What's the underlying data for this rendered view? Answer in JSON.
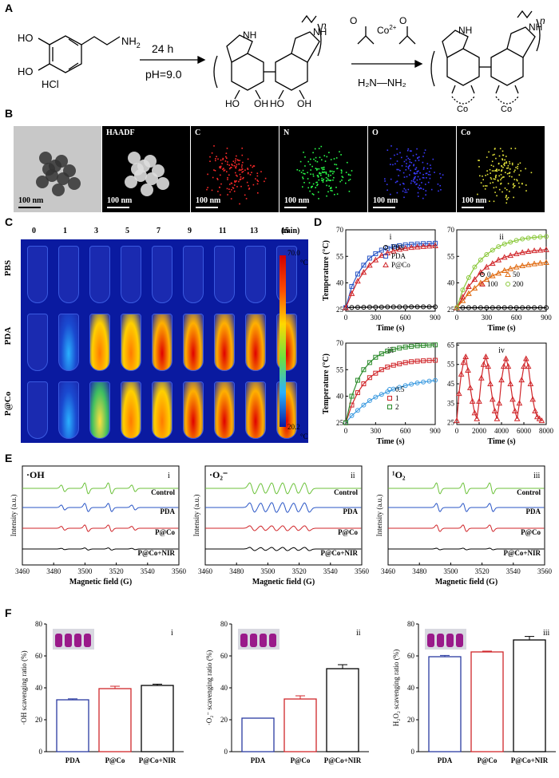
{
  "panels": {
    "A": "A",
    "B": "B",
    "C": "C",
    "D": "D",
    "E": "E",
    "F": "F"
  },
  "scheme": {
    "cond1": "24 h",
    "cond2": "pH=9.0",
    "reactant_hcl": "HCl",
    "reactant_nh2": "NH",
    "reactant_nh2_sub": "2",
    "reagent_n2h4": "H",
    "n_label": "n",
    "nh": "NH",
    "ho": "HO",
    "oh": "OH",
    "co2": "Co",
    "co_charge": "2+",
    "o_minus": "O",
    "co_center": "Co"
  },
  "tem": {
    "tiles": [
      {
        "label": "",
        "scale": "100 nm"
      },
      {
        "label": "HAADF",
        "scale": "100 nm"
      },
      {
        "label": "C",
        "scale": "100 nm",
        "color": "#ff2a2a"
      },
      {
        "label": "N",
        "scale": "100 nm",
        "color": "#2aff4a"
      },
      {
        "label": "O",
        "scale": "100 nm",
        "color": "#3a3aff"
      },
      {
        "label": "Co",
        "scale": "100 nm",
        "color": "#e6e63a"
      }
    ]
  },
  "thermal": {
    "times": [
      "0",
      "1",
      "3",
      "5",
      "7",
      "9",
      "11",
      "13",
      "15"
    ],
    "time_unit": "(min)",
    "rows": [
      "PBS",
      "PDA",
      "P@Co"
    ],
    "scale_max": "70.0",
    "scale_min": "20.2",
    "deg": "°C"
  },
  "chart_data": [
    {
      "panel": "D-i",
      "type": "line",
      "xlabel": "Time (s)",
      "ylabel": "Temperature (°C)",
      "xlim": [
        0,
        900
      ],
      "ylim": [
        24,
        70
      ],
      "xticks": [
        0,
        300,
        600,
        900
      ],
      "yticks": [
        25,
        40,
        55,
        70
      ],
      "legend": [
        "PBS",
        "PDA",
        "P@Co"
      ],
      "x": [
        0,
        60,
        120,
        180,
        240,
        300,
        360,
        420,
        480,
        540,
        600,
        660,
        720,
        780,
        840,
        900
      ],
      "series": [
        {
          "name": "PBS",
          "values": [
            26,
            26.1,
            26.2,
            26.2,
            26.3,
            26.3,
            26.3,
            26.4,
            26.4,
            26.4,
            26.4,
            26.5,
            26.5,
            26.5,
            26.5,
            26.5
          ]
        },
        {
          "name": "PDA",
          "values": [
            26,
            38,
            45,
            50,
            54,
            56.5,
            58.5,
            59.5,
            60.5,
            61,
            61.5,
            61.8,
            62,
            62.2,
            62.3,
            62.4
          ]
        },
        {
          "name": "P@Co",
          "values": [
            26,
            34,
            41,
            46,
            50,
            53,
            55.5,
            57,
            58,
            59,
            59.5,
            60,
            60.3,
            60.6,
            60.8,
            61
          ]
        }
      ]
    },
    {
      "panel": "D-ii",
      "type": "line",
      "xlabel": "Time (s)",
      "ylabel": "",
      "xlim": [
        0,
        900
      ],
      "ylim": [
        24,
        70
      ],
      "xticks": [
        0,
        300,
        600,
        900
      ],
      "yticks": [
        25,
        40,
        55,
        70
      ],
      "legend": [
        "0",
        "50",
        "100",
        "200"
      ],
      "x": [
        0,
        60,
        120,
        180,
        240,
        300,
        360,
        420,
        480,
        540,
        600,
        660,
        720,
        780,
        840,
        900
      ],
      "series": [
        {
          "name": "0",
          "values": [
            26,
            26,
            26,
            26,
            26,
            26,
            26,
            26,
            26,
            26,
            26,
            26,
            26,
            26,
            26,
            26
          ]
        },
        {
          "name": "50",
          "values": [
            26,
            30,
            34,
            37,
            40,
            42,
            44,
            45.5,
            47,
            48,
            49,
            49.7,
            50.3,
            50.8,
            51.2,
            51.5
          ]
        },
        {
          "name": "100",
          "values": [
            26,
            32,
            38,
            42,
            46,
            49,
            51,
            53,
            54.5,
            55.5,
            56.5,
            57.2,
            57.8,
            58.2,
            58.5,
            58.8
          ]
        },
        {
          "name": "200",
          "values": [
            26,
            36,
            43,
            49,
            53,
            56,
            58.5,
            60.5,
            62,
            63,
            64,
            64.8,
            65.3,
            65.7,
            66,
            66.2
          ]
        }
      ]
    },
    {
      "panel": "D-iii",
      "type": "line",
      "xlabel": "Time (s)",
      "ylabel": "Temperature (°C)",
      "xlim": [
        0,
        900
      ],
      "ylim": [
        24,
        70
      ],
      "xticks": [
        0,
        300,
        600,
        900
      ],
      "yticks": [
        25,
        40,
        55,
        70
      ],
      "legend": [
        "0.5",
        "1",
        "2"
      ],
      "x": [
        0,
        60,
        120,
        180,
        240,
        300,
        360,
        420,
        480,
        540,
        600,
        660,
        720,
        780,
        840,
        900
      ],
      "series": [
        {
          "name": "0.5",
          "values": [
            25,
            29,
            32,
            35,
            37.5,
            39.5,
            41,
            42.5,
            44,
            45,
            46,
            46.8,
            47.5,
            48,
            48.5,
            49
          ]
        },
        {
          "name": "1",
          "values": [
            25,
            35,
            42,
            47,
            50.5,
            53,
            55,
            56.5,
            57.5,
            58.3,
            59,
            59.5,
            59.8,
            60,
            60.2,
            60.3
          ]
        },
        {
          "name": "2",
          "values": [
            25,
            40,
            49,
            55,
            59,
            62,
            64,
            65.5,
            66.5,
            67.2,
            67.8,
            68.2,
            68.5,
            68.7,
            68.9,
            69
          ]
        }
      ]
    },
    {
      "panel": "D-iv",
      "type": "line",
      "xlabel": "Time (s)",
      "ylabel": "",
      "xlim": [
        0,
        8000
      ],
      "ylim": [
        24,
        66
      ],
      "xticks": [
        0,
        2000,
        4000,
        6000,
        8000
      ],
      "yticks": [
        25,
        35,
        45,
        55,
        65
      ],
      "legend": [],
      "x": [
        0,
        200,
        400,
        600,
        800,
        1000,
        1200,
        1400,
        1600,
        1800,
        2000,
        2200,
        2400,
        2600,
        2800,
        3000,
        3200,
        3400,
        3600,
        3800,
        4000,
        4200,
        4400,
        4600,
        4800,
        5000,
        5200,
        5400,
        5600,
        5800,
        6000,
        6200,
        6400,
        6600,
        6800,
        7000,
        7200,
        7400,
        7600
      ],
      "series": [
        {
          "name": "",
          "values": [
            26,
            40,
            50,
            56,
            59,
            52,
            43,
            36,
            30,
            27,
            36,
            48,
            55,
            59,
            54,
            45,
            37,
            31,
            27,
            35,
            47,
            54,
            58,
            54,
            45,
            37,
            31,
            27,
            35,
            47,
            54,
            58,
            54,
            45,
            37,
            31,
            28,
            27,
            26
          ]
        }
      ]
    },
    {
      "panel": "E-i",
      "type": "line",
      "title": "·OH",
      "xlabel": "Magnetic field (G)",
      "ylabel": "Intensity (a.u.)",
      "xlim": [
        3460,
        3560
      ],
      "xticks": [
        3460,
        3480,
        3500,
        3520,
        3540,
        3560
      ],
      "series_labels": [
        "Control",
        "PDA",
        "P@Co",
        "P@Co+NIR"
      ],
      "colors": [
        "#6cc23a",
        "#2a56c6",
        "#d0262a",
        "#000000"
      ],
      "peaks": [
        3486,
        3501,
        3516,
        3531
      ],
      "amps": [
        [
          0.6,
          1,
          1,
          0.6
        ],
        [
          0.45,
          0.75,
          0.75,
          0.45
        ],
        [
          0.35,
          0.6,
          0.6,
          0.35
        ],
        [
          0.12,
          0.2,
          0.2,
          0.12
        ]
      ]
    },
    {
      "panel": "E-ii",
      "type": "line",
      "title": "·O₂⁻",
      "xlabel": "Magnetic field (G)",
      "ylabel": "Intensity (a.u.)",
      "xlim": [
        3460,
        3560
      ],
      "xticks": [
        3460,
        3480,
        3500,
        3520,
        3540,
        3560
      ],
      "series_labels": [
        "Control",
        "PDA",
        "P@Co",
        "P@Co+NIR"
      ],
      "colors": [
        "#6cc23a",
        "#2a56c6",
        "#d0262a",
        "#000000"
      ],
      "peaks": [
        3490,
        3497,
        3504,
        3511,
        3518,
        3525
      ],
      "amps": [
        [
          1,
          0.9,
          1,
          1,
          0.9,
          1
        ],
        [
          0.85,
          0.8,
          0.9,
          0.9,
          0.8,
          0.85
        ],
        [
          0.45,
          0.4,
          0.45,
          0.45,
          0.4,
          0.45
        ],
        [
          0.3,
          0.25,
          0.3,
          0.3,
          0.25,
          0.3
        ]
      ]
    },
    {
      "panel": "E-iii",
      "type": "line",
      "title": "¹O₂",
      "xlabel": "Magnetic field (G)",
      "ylabel": "Intensity (a.u.)",
      "xlim": [
        3460,
        3560
      ],
      "xticks": [
        3460,
        3480,
        3500,
        3520,
        3540,
        3560
      ],
      "series_labels": [
        "Control",
        "PDA",
        "P@Co",
        "P@Co+NIR"
      ],
      "colors": [
        "#6cc23a",
        "#2a56c6",
        "#d0262a",
        "#000000"
      ],
      "peaks": [
        3492,
        3509,
        3526
      ],
      "amps": [
        [
          1,
          1,
          1
        ],
        [
          0.75,
          0.75,
          0.75
        ],
        [
          0.6,
          0.6,
          0.6
        ],
        [
          0.15,
          0.15,
          0.15
        ]
      ]
    },
    {
      "panel": "F-i",
      "type": "bar",
      "ylabel": "·OH scavenging ratio (%)",
      "categories": [
        "PDA",
        "P@Co",
        "P@Co+NIR"
      ],
      "values": [
        32.5,
        39.5,
        41.5
      ],
      "errors": [
        0.6,
        1.5,
        0.8
      ],
      "ylim": [
        0,
        80
      ],
      "yticks": [
        0,
        20,
        40,
        60,
        80
      ],
      "colors": [
        "#2a3aa0",
        "#d0262a",
        "#000000"
      ]
    },
    {
      "panel": "F-ii",
      "type": "bar",
      "ylabel": "·O₂⁻ scavenging ratio (%)",
      "categories": [
        "PDA",
        "P@Co",
        "P@Co+NIR"
      ],
      "values": [
        21,
        33,
        52
      ],
      "errors": [
        0,
        2,
        2.5
      ],
      "ylim": [
        0,
        80
      ],
      "yticks": [
        0,
        20,
        40,
        60,
        80
      ],
      "colors": [
        "#2a3aa0",
        "#d0262a",
        "#000000"
      ]
    },
    {
      "panel": "F-iii",
      "type": "bar",
      "ylabel": "H₂O₂ scavenging ratio (%)",
      "categories": [
        "PDA",
        "P@Co",
        "P@Co+NIR"
      ],
      "values": [
        59.5,
        62.5,
        70
      ],
      "errors": [
        0.8,
        0.5,
        2.2
      ],
      "ylim": [
        0,
        80
      ],
      "yticks": [
        0,
        20,
        40,
        60,
        80
      ],
      "colors": [
        "#2a3aa0",
        "#d0262a",
        "#000000"
      ]
    }
  ],
  "roman": [
    "i",
    "ii",
    "iii",
    "iv"
  ]
}
